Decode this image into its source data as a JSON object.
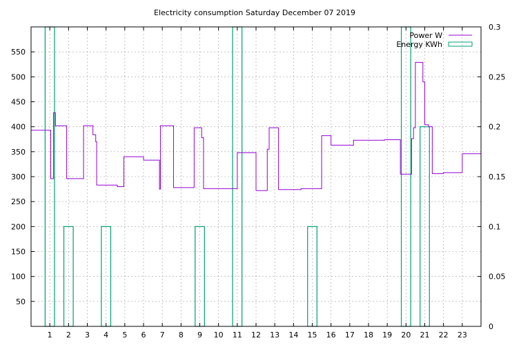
{
  "chart_data": {
    "type": "line",
    "title": "Electricity consumption Saturday December 07 2019",
    "xlabel": "",
    "ylabel": "",
    "xlim": [
      0,
      24
    ],
    "ylim": [
      0,
      600
    ],
    "y2lim": [
      0,
      0.3
    ],
    "x_ticks": [
      1,
      2,
      3,
      4,
      5,
      6,
      7,
      8,
      9,
      10,
      11,
      12,
      13,
      14,
      15,
      16,
      17,
      18,
      19,
      20,
      21,
      22,
      23
    ],
    "y_ticks": [
      50,
      100,
      150,
      200,
      250,
      300,
      350,
      400,
      450,
      500,
      550
    ],
    "y2_ticks": [
      "0",
      "0.05",
      "0.1",
      "0.15",
      "0.2",
      "0.25",
      "0.3"
    ],
    "y2_tick_values": [
      0,
      0.05,
      0.1,
      0.15,
      0.2,
      0.25,
      0.3
    ],
    "grid": true,
    "legend_position": "top-right",
    "series": [
      {
        "name": "Power W",
        "axis": "y",
        "color": "#9400d3",
        "style": "step",
        "x": [
          0,
          1.0,
          1.05,
          1.2,
          1.3,
          1.8,
          1.9,
          2.7,
          2.8,
          3.3,
          3.35,
          3.45,
          3.5,
          4.5,
          4.6,
          4.85,
          4.95,
          5.3,
          6.0,
          6.8,
          6.85,
          6.9,
          7.5,
          7.6,
          8.6,
          8.7,
          9.0,
          9.1,
          9.2,
          10.9,
          11.0,
          11.9,
          12.0,
          12.5,
          12.6,
          12.7,
          13.1,
          13.2,
          14.0,
          14.4,
          15.4,
          15.5,
          15.75,
          16.0,
          17.0,
          17.2,
          18.8,
          18.85,
          19.7,
          20.2,
          20.3,
          20.4,
          20.5,
          20.8,
          20.9,
          21.0,
          21.05,
          21.2,
          21.4,
          21.5,
          22.0,
          23.0
        ],
        "values": [
          393,
          393,
          296,
          428,
          402,
          402,
          296,
          296,
          402,
          384,
          384,
          370,
          283,
          283,
          280,
          280,
          340,
          340,
          333,
          333,
          275,
          402,
          402,
          278,
          278,
          398,
          398,
          378,
          276,
          276,
          348,
          348,
          272,
          272,
          355,
          398,
          398,
          274,
          274,
          276,
          276,
          382,
          382,
          363,
          363,
          373,
          373,
          374,
          305,
          305,
          376,
          398,
          529,
          529,
          490,
          404,
          404,
          400,
          306,
          306,
          308,
          346
        ]
      },
      {
        "name": "Energy KWh",
        "axis": "y2",
        "color": "#009e73",
        "style": "boxes",
        "bars": [
          {
            "x0": 0.75,
            "x1": 1.25,
            "value": 0.3
          },
          {
            "x0": 1.75,
            "x1": 2.25,
            "value": 0.1
          },
          {
            "x0": 3.75,
            "x1": 4.25,
            "value": 0.1
          },
          {
            "x0": 8.75,
            "x1": 9.25,
            "value": 0.1
          },
          {
            "x0": 10.75,
            "x1": 11.25,
            "value": 0.3
          },
          {
            "x0": 14.75,
            "x1": 15.25,
            "value": 0.1
          },
          {
            "x0": 19.75,
            "x1": 20.25,
            "value": 0.3
          },
          {
            "x0": 20.75,
            "x1": 21.25,
            "value": 0.2
          }
        ]
      }
    ]
  }
}
